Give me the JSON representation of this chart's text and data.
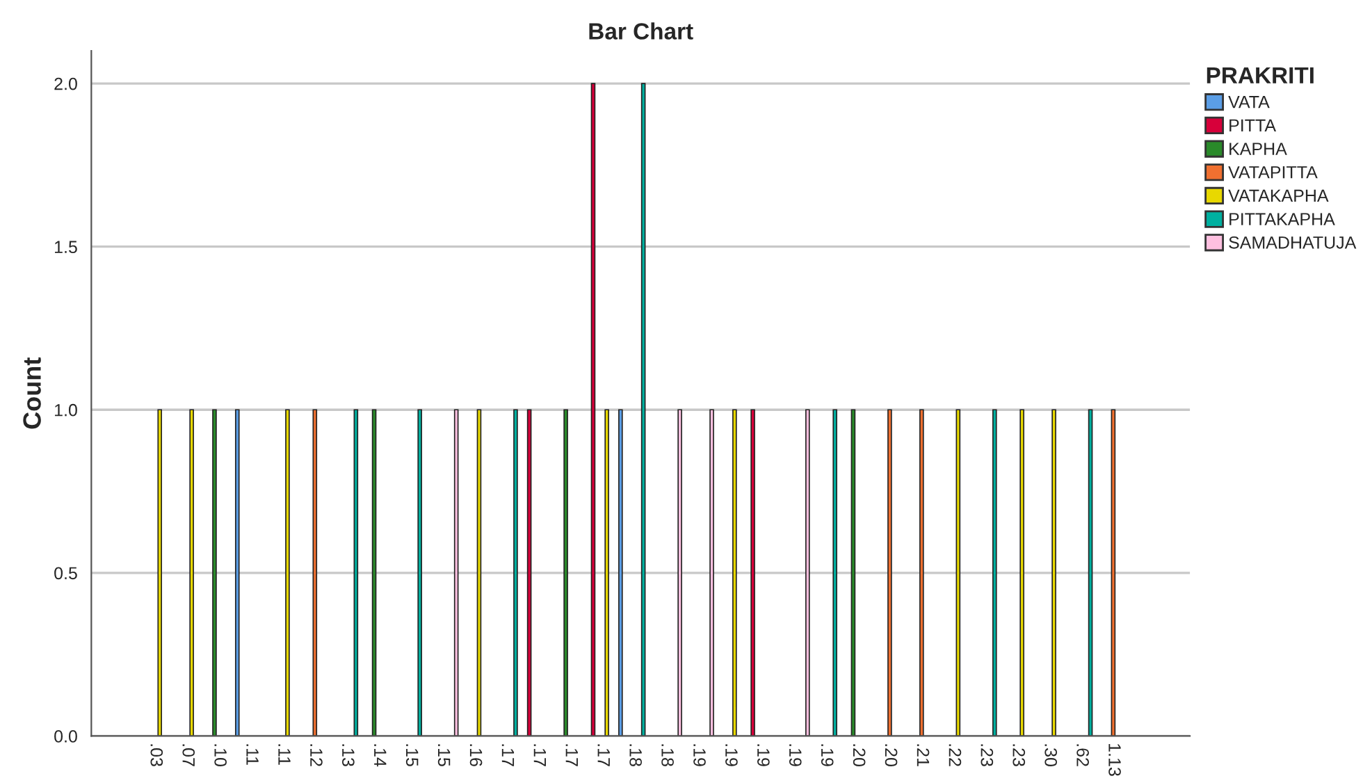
{
  "chart_data": {
    "type": "bar",
    "title": "Bar Chart",
    "ylabel": "Count",
    "legend_title": "PRAKRITI",
    "categories": [
      ".03",
      ".07",
      ".10",
      ".11",
      ".11",
      ".12",
      ".13",
      ".14",
      ".15",
      ".15",
      ".16",
      ".17",
      ".17",
      ".17",
      ".17",
      ".18",
      ".18",
      ".19",
      ".19",
      ".19",
      ".19",
      ".19",
      ".20",
      ".20",
      ".21",
      ".22",
      ".23",
      ".23",
      ".30",
      ".62",
      "1.13"
    ],
    "series": [
      {
        "name": "VATA",
        "color": "#5b9ee6",
        "values": [
          null,
          null,
          null,
          1,
          null,
          null,
          null,
          null,
          null,
          null,
          null,
          null,
          null,
          null,
          null,
          1,
          null,
          null,
          null,
          null,
          null,
          null,
          null,
          null,
          null,
          null,
          null,
          null,
          null,
          null,
          null
        ]
      },
      {
        "name": "PITTA",
        "color": "#d7003a",
        "values": [
          null,
          null,
          null,
          null,
          null,
          null,
          null,
          null,
          null,
          null,
          null,
          null,
          1,
          null,
          2,
          null,
          null,
          null,
          null,
          1,
          null,
          null,
          null,
          null,
          null,
          null,
          null,
          null,
          null,
          null,
          null
        ]
      },
      {
        "name": "KAPHA",
        "color": "#2a8a2a",
        "values": [
          null,
          null,
          1,
          null,
          null,
          null,
          null,
          1,
          null,
          null,
          null,
          null,
          null,
          1,
          null,
          null,
          null,
          null,
          null,
          null,
          null,
          null,
          1,
          null,
          null,
          null,
          null,
          null,
          null,
          null,
          null
        ]
      },
      {
        "name": "VATAPITTA",
        "color": "#f07030",
        "values": [
          null,
          null,
          null,
          null,
          null,
          1,
          null,
          null,
          null,
          null,
          null,
          null,
          null,
          null,
          null,
          null,
          null,
          null,
          null,
          null,
          null,
          null,
          null,
          1,
          1,
          null,
          null,
          null,
          null,
          null,
          1
        ]
      },
      {
        "name": "VATAKAPHA",
        "color": "#e8d800",
        "values": [
          1,
          1,
          null,
          null,
          1,
          null,
          null,
          null,
          null,
          null,
          1,
          null,
          null,
          null,
          1,
          null,
          null,
          null,
          1,
          null,
          null,
          null,
          null,
          null,
          null,
          1,
          null,
          1,
          1,
          null,
          null
        ]
      },
      {
        "name": "PITTAKAPHA",
        "color": "#00b0a0",
        "values": [
          null,
          null,
          null,
          null,
          null,
          null,
          1,
          null,
          1,
          null,
          null,
          1,
          null,
          null,
          null,
          2,
          null,
          null,
          null,
          null,
          null,
          1,
          null,
          null,
          null,
          null,
          1,
          null,
          null,
          1,
          null
        ]
      },
      {
        "name": "SAMADHATUJA",
        "color": "#ffc0e0",
        "values": [
          null,
          null,
          null,
          null,
          null,
          null,
          null,
          null,
          null,
          1,
          null,
          null,
          null,
          null,
          null,
          null,
          1,
          1,
          null,
          null,
          1,
          null,
          null,
          null,
          null,
          null,
          null,
          null,
          null,
          null,
          null
        ]
      }
    ],
    "ylim": [
      0,
      2.1
    ],
    "yticks": [
      {
        "value": 0,
        "label": "0.0"
      },
      {
        "value": 0.5,
        "label": "0.5"
      },
      {
        "value": 1,
        "label": "1.0"
      },
      {
        "value": 1.5,
        "label": "1.5"
      },
      {
        "value": 2,
        "label": "2.0"
      }
    ],
    "grid": "y",
    "legend": "right"
  }
}
